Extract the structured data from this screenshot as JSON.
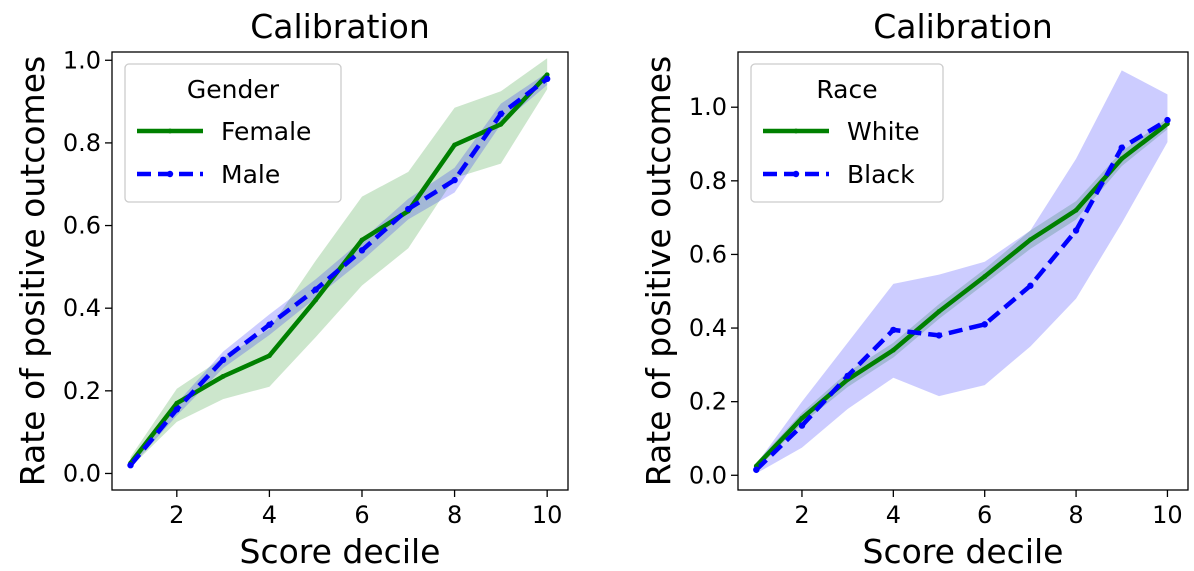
{
  "chart_data": [
    {
      "type": "line",
      "title": "Calibration",
      "xlabel": "Score decile",
      "ylabel": "Rate of positive outcomes",
      "xlim": [
        0.6,
        10.45
      ],
      "ylim": [
        -0.04,
        1.02
      ],
      "xticks": [
        2,
        4,
        6,
        8,
        10
      ],
      "yticks": [
        0.0,
        0.2,
        0.4,
        0.6,
        0.8,
        1.0
      ],
      "ytick_labels": [
        "0.0",
        "0.2",
        "0.4",
        "0.6",
        "0.8",
        "1.0"
      ],
      "grid": false,
      "legend": {
        "title": "Gender",
        "position": "top-left"
      },
      "x": [
        1,
        2,
        3,
        4,
        5,
        6,
        7,
        8,
        9,
        10
      ],
      "series": [
        {
          "name": "Female",
          "color": "#008000",
          "style": "solid",
          "values": [
            0.025,
            0.17,
            0.235,
            0.285,
            0.42,
            0.565,
            0.635,
            0.795,
            0.845,
            0.965
          ],
          "band_lower": [
            0.015,
            0.125,
            0.18,
            0.21,
            0.33,
            0.455,
            0.545,
            0.715,
            0.75,
            0.93
          ],
          "band_upper": [
            0.04,
            0.205,
            0.28,
            0.35,
            0.515,
            0.67,
            0.73,
            0.885,
            0.925,
            1.005
          ]
        },
        {
          "name": "Male",
          "color": "#0000ff",
          "style": "dashed",
          "values": [
            0.02,
            0.155,
            0.275,
            0.36,
            0.445,
            0.54,
            0.64,
            0.71,
            0.87,
            0.955
          ],
          "band_lower": [
            0.015,
            0.14,
            0.255,
            0.335,
            0.425,
            0.515,
            0.615,
            0.68,
            0.845,
            0.94
          ],
          "band_upper": [
            0.03,
            0.17,
            0.295,
            0.385,
            0.47,
            0.565,
            0.665,
            0.74,
            0.895,
            0.97
          ]
        }
      ]
    },
    {
      "type": "line",
      "title": "Calibration",
      "xlabel": "Score decile",
      "ylabel": "Rate of positive outcomes",
      "xlim": [
        0.6,
        10.45
      ],
      "ylim": [
        -0.04,
        1.15
      ],
      "xticks": [
        2,
        4,
        6,
        8,
        10
      ],
      "yticks": [
        0.0,
        0.2,
        0.4,
        0.6,
        0.8,
        1.0
      ],
      "ytick_labels": [
        "0.0",
        "0.2",
        "0.4",
        "0.6",
        "0.8",
        "1.0"
      ],
      "grid": false,
      "legend": {
        "title": "Race",
        "position": "top-left"
      },
      "x": [
        1,
        2,
        3,
        4,
        5,
        6,
        7,
        8,
        9,
        10
      ],
      "series": [
        {
          "name": "White",
          "color": "#008000",
          "style": "solid",
          "values": [
            0.025,
            0.155,
            0.26,
            0.34,
            0.445,
            0.54,
            0.64,
            0.72,
            0.86,
            0.955
          ],
          "band_lower": [
            0.015,
            0.14,
            0.24,
            0.32,
            0.425,
            0.52,
            0.615,
            0.695,
            0.84,
            0.94
          ],
          "band_upper": [
            0.035,
            0.17,
            0.28,
            0.36,
            0.465,
            0.56,
            0.665,
            0.745,
            0.88,
            0.97
          ]
        },
        {
          "name": "Black",
          "color": "#0000ff",
          "style": "dashed",
          "values": [
            0.015,
            0.135,
            0.27,
            0.395,
            0.38,
            0.41,
            0.515,
            0.665,
            0.89,
            0.965
          ],
          "band_lower": [
            0.005,
            0.075,
            0.18,
            0.265,
            0.215,
            0.245,
            0.35,
            0.48,
            0.685,
            0.905
          ],
          "band_upper": [
            0.03,
            0.2,
            0.36,
            0.52,
            0.545,
            0.58,
            0.665,
            0.86,
            1.1,
            1.035
          ]
        }
      ]
    }
  ]
}
